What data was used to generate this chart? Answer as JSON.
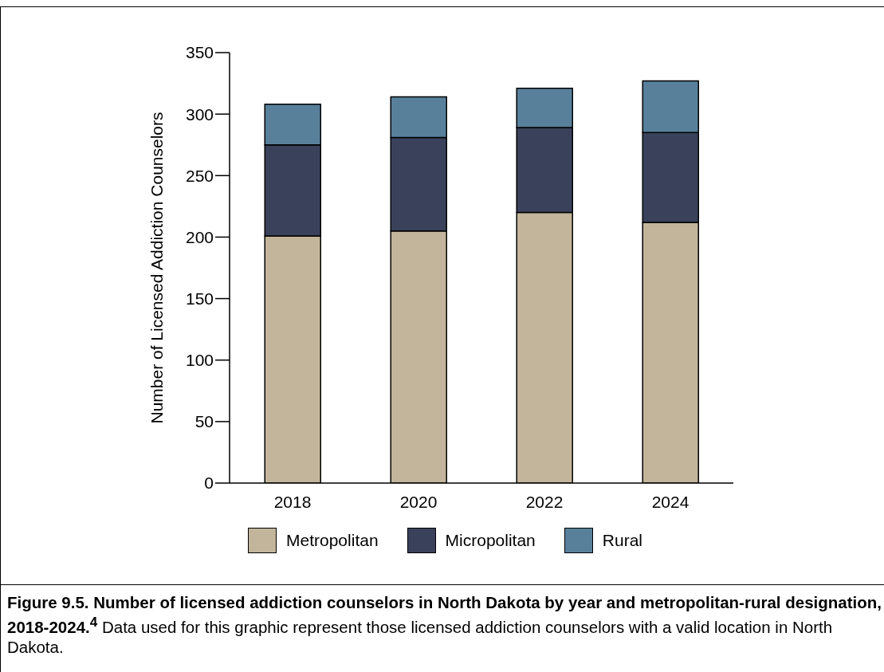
{
  "chart_data": {
    "type": "bar",
    "stacked": true,
    "title": "Figure 9.5. Number of licensed addiction counselors in North Dakota by year and metropolitan-rural designation, 2018-2024.$^{4}$",
    "annotations": [
      "Data used for this graphic represent those licensed addiction counselors with a valid location in North Dakota."
    ],
    "ylabel": "Number of Licensed Addiction Counselors",
    "categories": [
      "2018",
      "2020",
      "2022",
      "2024"
    ],
    "series": [
      {
        "name": "Metropolitan",
        "color": "#c2b59b",
        "values": [
          201,
          205,
          220,
          212
        ]
      },
      {
        "name": "Micropolitan",
        "color": "#3a425b",
        "values": [
          74,
          76,
          69,
          73
        ]
      },
      {
        "name": "Rural",
        "color": "#58809b",
        "values": [
          33,
          33,
          32,
          42
        ]
      }
    ],
    "ylim": [
      0,
      350
    ],
    "yticks": [
      0,
      50,
      100,
      150,
      200,
      250,
      300,
      350
    ],
    "grid": false,
    "legend": "bottom"
  }
}
